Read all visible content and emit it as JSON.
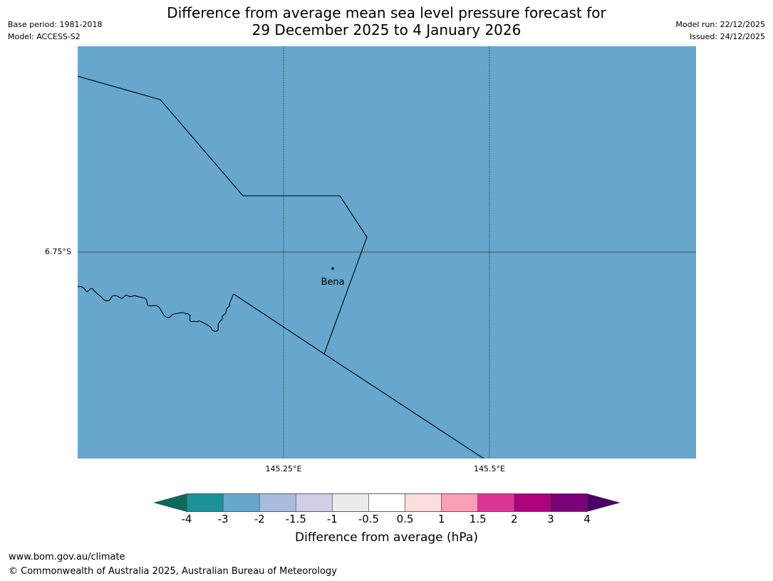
{
  "header": {
    "title_line1": "Difference from average mean sea level pressure forecast for",
    "title_line2": "29 December 2025 to 4 January 2026",
    "base_period": "Base period: 1981-2018",
    "model": "Model: ACCESS-S2",
    "model_run": "Model run: 22/12/2025",
    "issued": "Issued: 24/12/2025"
  },
  "map": {
    "fill_color": "#67a7cd",
    "fill_value_range": "-3 to -2",
    "lat_label": "6.75°S",
    "lon_labels": [
      "145.25°E",
      "145.5°E"
    ],
    "town": "Bena"
  },
  "colorbar": {
    "label": "Difference from average (hPa)",
    "ticks": [
      "-4",
      "-3",
      "-2",
      "-1.5",
      "-1",
      "-0.5",
      "0.5",
      "1",
      "1.5",
      "2",
      "3",
      "4"
    ],
    "colors": [
      "#1b9199",
      "#67a7cd",
      "#a7bddb",
      "#d0cfe6",
      "#ecebf0",
      "#ffffff",
      "#ffdede",
      "#f89fb6",
      "#dd3497",
      "#ae017e",
      "#7a0177"
    ],
    "under_color": "#0a6b5d",
    "over_color": "#49006a"
  },
  "footer": {
    "url": "www.bom.gov.au/climate",
    "copyright": "© Commonwealth of Australia 2025, Australian Bureau of Meteorology"
  }
}
